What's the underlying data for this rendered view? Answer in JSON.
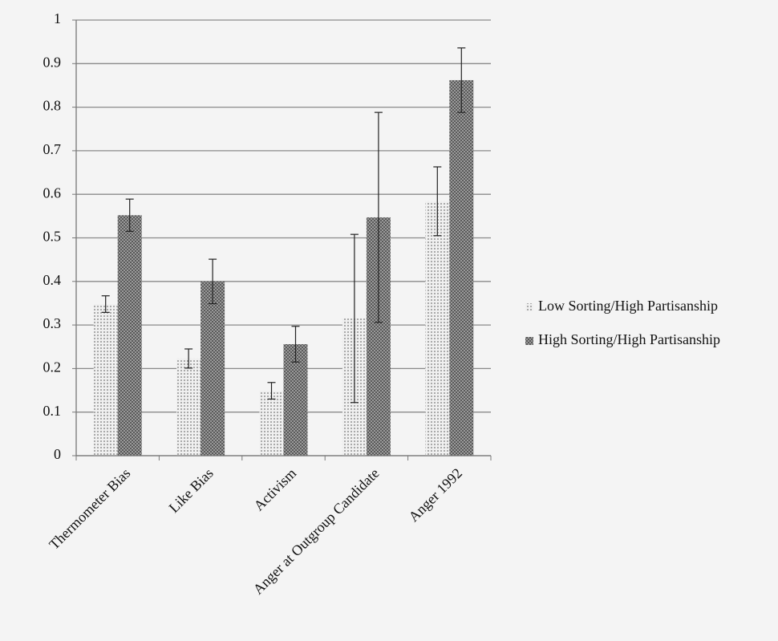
{
  "chart_data": {
    "type": "bar",
    "categories": [
      "Thermometer Bias",
      "Like Bias",
      "Activism",
      "Anger at Outgroup Candidate",
      "Anger 1992"
    ],
    "series": [
      {
        "name": "Low Sorting/High Partisanship",
        "color": "#d6d6d6",
        "values": [
          0.348,
          0.223,
          0.149,
          0.315,
          0.584
        ],
        "errors": [
          0.019,
          0.022,
          0.019,
          0.193,
          0.079
        ]
      },
      {
        "name": "High Sorting/High Partisanship",
        "color": "#5a5a5a",
        "values": [
          0.552,
          0.4,
          0.256,
          0.547,
          0.862
        ],
        "errors": [
          0.037,
          0.051,
          0.041,
          0.241,
          0.074
        ]
      }
    ],
    "ylim": [
      0,
      1
    ],
    "yticks": [
      0,
      0.1,
      0.2,
      0.3,
      0.4,
      0.5,
      0.6,
      0.7,
      0.8,
      0.9,
      1
    ],
    "grid": true,
    "legend": "right"
  }
}
